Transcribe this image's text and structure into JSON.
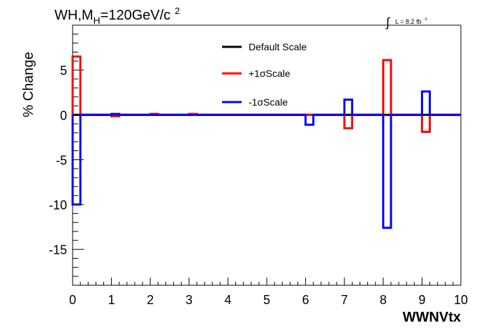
{
  "chart_data": {
    "type": "line",
    "title_main": "WH,M",
    "title_sub": "H",
    "title_rest": "=120GeV/c",
    "title_sup": "2",
    "lumi_integral": "∫",
    "lumi_text": "L = 8.2 fb",
    "lumi_sup": "-1",
    "xlabel": "WWNVtx",
    "ylabel": "% Change",
    "xlim": [
      0,
      10
    ],
    "ylim": [
      -19,
      10
    ],
    "x_ticks": [
      0,
      1,
      2,
      3,
      4,
      5,
      6,
      7,
      8,
      9,
      10
    ],
    "y_ticks": [
      -15,
      -10,
      -5,
      0,
      5
    ],
    "bin_edges": [
      0,
      0.2,
      1,
      1.2,
      2,
      2.2,
      3,
      3.2,
      6,
      6.2,
      7,
      7.2,
      8,
      8.2,
      9,
      9.2,
      10
    ],
    "series": [
      {
        "name": "Default Scale",
        "color": "#000000",
        "values": [
          0,
          0,
          0,
          0,
          0,
          0,
          0,
          0,
          0,
          0,
          0,
          0,
          0,
          0,
          0,
          0
        ]
      },
      {
        "name": "+1σScale",
        "color": "#ff0000",
        "values": [
          6.5,
          0,
          -0.15,
          0,
          0.1,
          0,
          0.1,
          0,
          0,
          0,
          -1.5,
          0,
          6.1,
          0,
          -1.9,
          0
        ]
      },
      {
        "name": "-1σScale",
        "color": "#0000ff",
        "values": [
          -10,
          0,
          0.1,
          0,
          0,
          0,
          0,
          0,
          -1.1,
          0,
          1.7,
          0,
          -12.6,
          0,
          2.6,
          0
        ]
      }
    ],
    "legend_position": "top-center",
    "grid": false
  }
}
